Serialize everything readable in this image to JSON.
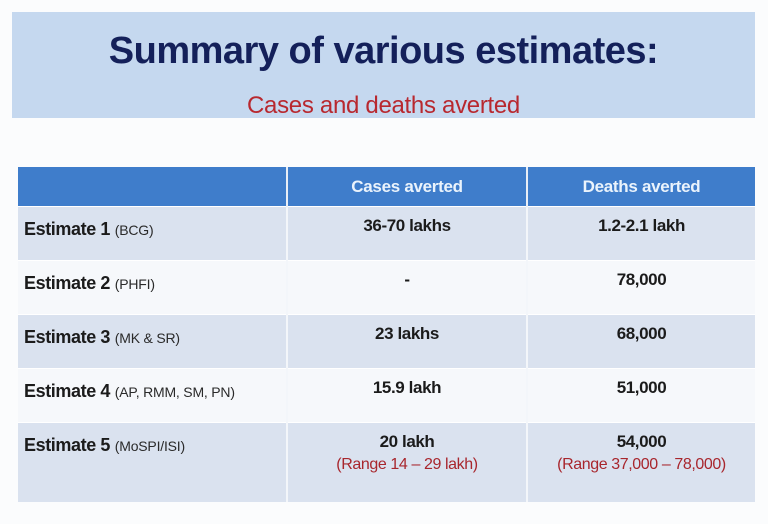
{
  "banner": {
    "title": "Summary of various estimates:",
    "subtitle": "Cases and deaths averted"
  },
  "colors": {
    "banner_bg": "#c5d8ef",
    "title_text": "#14205a",
    "subtitle_text": "#b8282f",
    "header_bg": "#3f7dcb",
    "row_band": "#dae2ef",
    "range_text": "#a8262d"
  },
  "table": {
    "columns": [
      "",
      "Cases averted",
      "Deaths averted"
    ],
    "rows": [
      {
        "name": "Estimate 1",
        "source": "(BCG)",
        "cases": "36-70 lakhs",
        "cases_range": "",
        "deaths": "1.2-2.1 lakh",
        "deaths_range": ""
      },
      {
        "name": "Estimate 2",
        "source": "(PHFI)",
        "cases": "-",
        "cases_range": "",
        "deaths": "78,000",
        "deaths_range": ""
      },
      {
        "name": "Estimate 3",
        "source": "(MK & SR)",
        "cases": "23 lakhs",
        "cases_range": "",
        "deaths": "68,000",
        "deaths_range": ""
      },
      {
        "name": "Estimate 4",
        "source": "(AP, RMM, SM, PN)",
        "cases": "15.9 lakh",
        "cases_range": "",
        "deaths": "51,000",
        "deaths_range": ""
      },
      {
        "name": "Estimate 5",
        "source": "(MoSPI/ISI)",
        "cases": "20 lakh",
        "cases_range": "(Range 14 – 29 lakh)",
        "deaths": "54,000",
        "deaths_range": "(Range 37,000 – 78,000)"
      }
    ]
  }
}
